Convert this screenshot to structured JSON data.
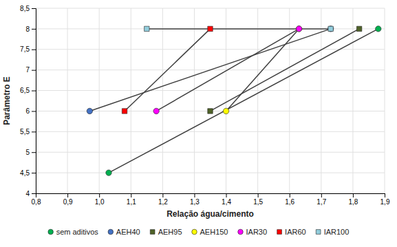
{
  "chart_data": {
    "type": "line",
    "xlabel": "Relação água/cimento",
    "ylabel": "Parâmetro E",
    "xlim": [
      0.8,
      1.9
    ],
    "ylim": [
      4.0,
      8.5
    ],
    "xticks": [
      {
        "value": 0.8,
        "label": "0,8"
      },
      {
        "value": 0.9,
        "label": "0,9"
      },
      {
        "value": 1.0,
        "label": "1,0"
      },
      {
        "value": 1.1,
        "label": "1,1"
      },
      {
        "value": 1.2,
        "label": "1,2"
      },
      {
        "value": 1.3,
        "label": "1,3"
      },
      {
        "value": 1.4,
        "label": "1,4"
      },
      {
        "value": 1.5,
        "label": "1,5"
      },
      {
        "value": 1.6,
        "label": "1,6"
      },
      {
        "value": 1.7,
        "label": "1,7"
      },
      {
        "value": 1.8,
        "label": "1,8"
      },
      {
        "value": 1.9,
        "label": "1,9"
      }
    ],
    "yticks": [
      4,
      {
        "value": 4.5,
        "label": "4,5"
      },
      5,
      {
        "value": 5.5,
        "label": "5,5"
      },
      6,
      {
        "value": 6.5,
        "label": "6,5"
      },
      7,
      {
        "value": 7.5,
        "label": "7,5"
      },
      8,
      {
        "value": 8.5,
        "label": "8,5"
      }
    ],
    "color": "#404040",
    "grid": true,
    "legend": "bottom",
    "series": [
      {
        "name": "sem aditivos",
        "color": "#00b050",
        "marker": "circle",
        "x": [
          1.03,
          1.88
        ],
        "values": [
          4.5,
          8.0
        ]
      },
      {
        "name": "AEH40",
        "color": "#4472c4",
        "marker": "circle",
        "x": [
          0.97,
          1.73
        ],
        "values": [
          6.0,
          8.0
        ]
      },
      {
        "name": "AEH95",
        "color": "#4f6228",
        "marker": "square",
        "x": [
          1.35,
          1.82
        ],
        "values": [
          6.0,
          8.0
        ]
      },
      {
        "name": "AEH150",
        "color": "#ffff00",
        "marker": "circle",
        "x": [
          1.4,
          1.63
        ],
        "values": [
          6.0,
          8.0
        ]
      },
      {
        "name": "IAR30",
        "color": "#ff00ff",
        "marker": "circle",
        "x": [
          1.18,
          1.63
        ],
        "values": [
          6.0,
          8.0
        ]
      },
      {
        "name": "IAR60",
        "color": "#ff0000",
        "marker": "square",
        "x": [
          1.08,
          1.35
        ],
        "values": [
          6.0,
          8.0
        ]
      },
      {
        "name": "IAR100",
        "color": "#92cddc",
        "marker": "square",
        "x": [
          1.15,
          1.73
        ],
        "values": [
          8.0,
          8.0
        ]
      }
    ]
  }
}
